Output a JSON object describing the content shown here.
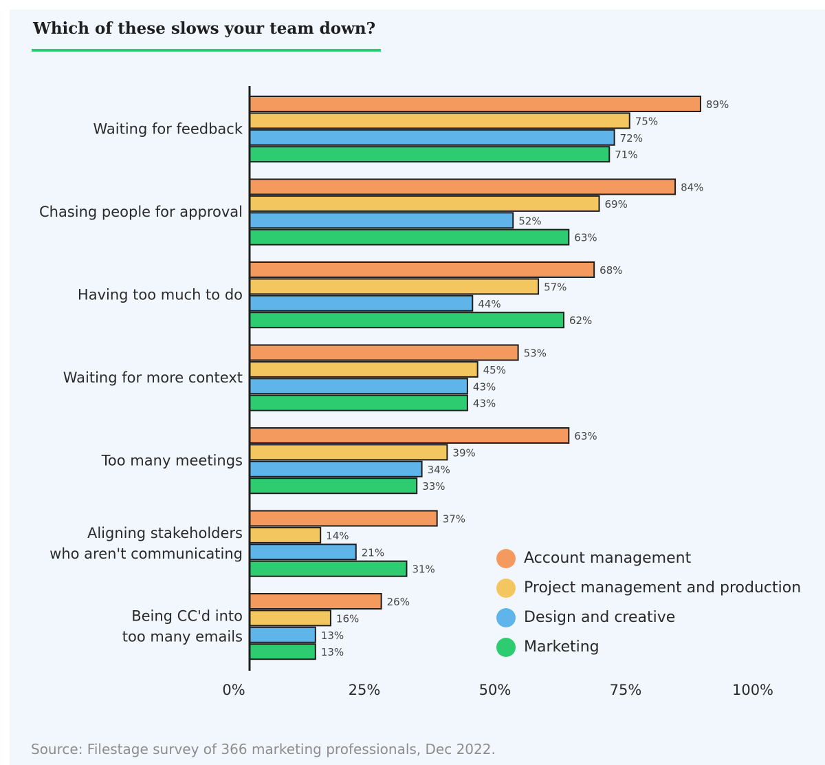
{
  "source": "Source: Filestage survey of 366 marketing professionals, Dec 2022.",
  "chart_data": {
    "type": "bar",
    "orientation": "horizontal",
    "title": "Which of these slows your team down?",
    "xlabel": "",
    "ylabel": "",
    "xlim": [
      0,
      100
    ],
    "x_ticks": [
      "0%",
      "25%",
      "50%",
      "75%",
      "100%"
    ],
    "grid": false,
    "legend_position": "bottom-right",
    "categories": [
      "Waiting for feedback",
      "Chasing people for approval",
      "Having too much to do",
      "Waiting for more context",
      "Too many meetings",
      "Aligning stakeholders who aren't communicating",
      "Being CC'd into too many emails"
    ],
    "category_label_lines": [
      [
        "Waiting for feedback"
      ],
      [
        "Chasing people for approval"
      ],
      [
        "Having too much to do"
      ],
      [
        "Waiting for more context"
      ],
      [
        "Too many meetings"
      ],
      [
        "Aligning stakeholders",
        "who aren't communicating"
      ],
      [
        "Being CC'd into",
        "too many emails"
      ]
    ],
    "series": [
      {
        "name": "Account management",
        "color": "#f59a5f",
        "values": [
          89,
          84,
          68,
          53,
          63,
          37,
          26
        ]
      },
      {
        "name": "Project management and production",
        "color": "#f3c65f",
        "values": [
          75,
          69,
          57,
          45,
          39,
          14,
          16
        ]
      },
      {
        "name": "Design and creative",
        "color": "#5fb4ea",
        "values": [
          72,
          52,
          44,
          43,
          34,
          21,
          13
        ]
      },
      {
        "name": "Marketing",
        "color": "#2ecc71",
        "values": [
          71,
          63,
          62,
          43,
          33,
          31,
          13
        ]
      }
    ]
  }
}
